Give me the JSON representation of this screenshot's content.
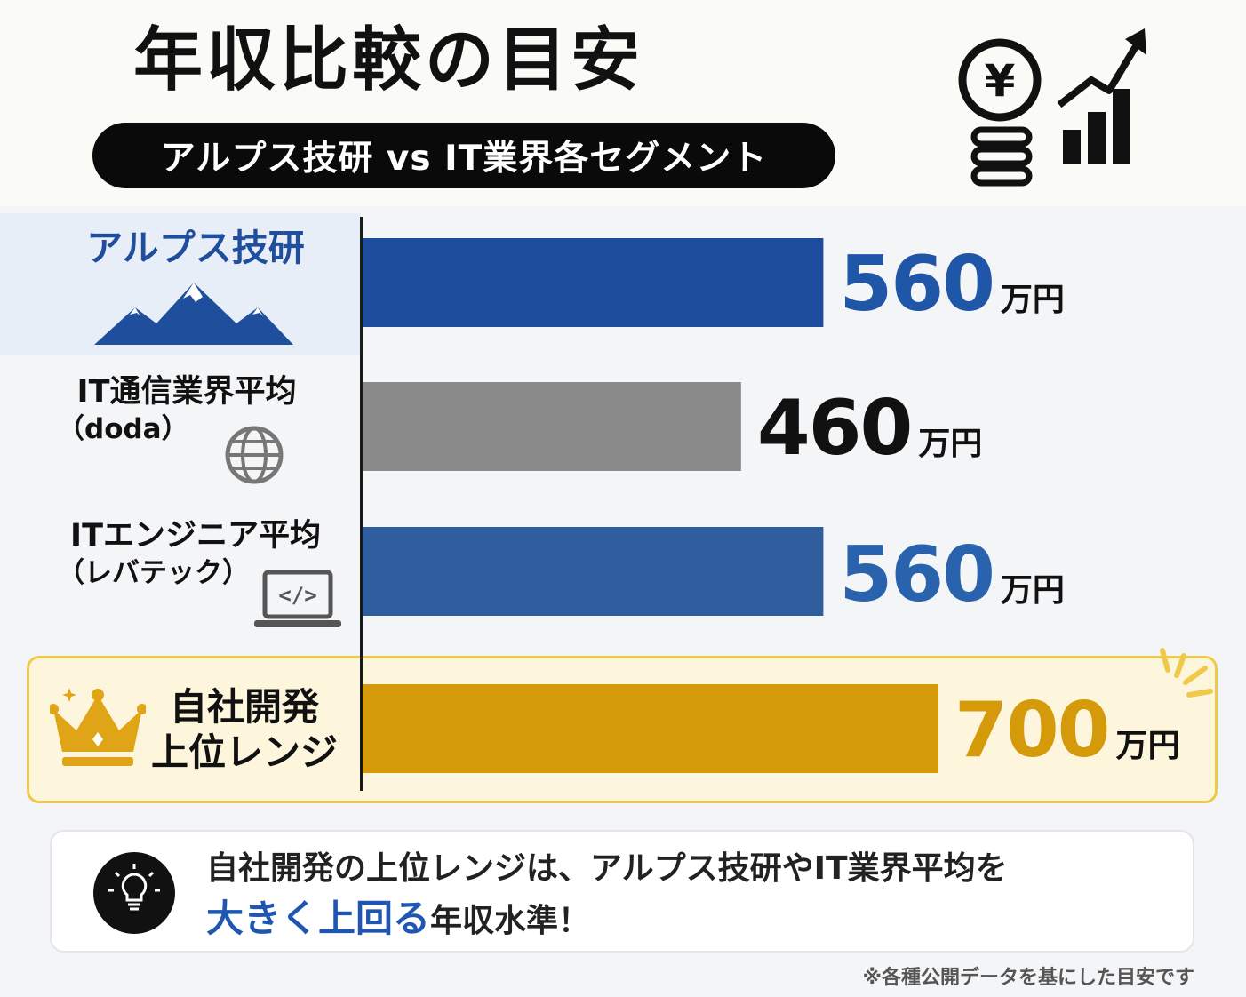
{
  "header": {
    "title": "年収比較の目安",
    "subtitle": "アルプス技研 vs IT業界各セグメント"
  },
  "chart_data": {
    "type": "bar",
    "orientation": "horizontal",
    "title": "年収比較の目安",
    "subtitle": "アルプス技研 vs IT業界各セグメント",
    "categories": [
      "アルプス技研",
      "IT通信業界平均（doda）",
      "ITエンジニア平均（レバテック）",
      "自社開発 上位レンジ"
    ],
    "values": [
      560,
      460,
      560,
      700
    ],
    "unit": "万円",
    "xlim": [
      0,
      700
    ],
    "grid": false,
    "legend": "none",
    "bar_colors": [
      "#1e4c9c",
      "#8a8a8a",
      "#2f5e9f",
      "#d49a09"
    ],
    "value_label_colors": [
      "#1f56a8",
      "#111111",
      "#2a63ad",
      "#d49a09"
    ]
  },
  "rows": [
    {
      "label": "アルプス技研",
      "sub": "",
      "value_text": "560",
      "unit": "万円",
      "icon": "mountain-icon"
    },
    {
      "label": "IT通信業界平均",
      "sub": "（doda）",
      "value_text": "460",
      "unit": "万円",
      "icon": "globe-icon"
    },
    {
      "label": "ITエンジニア平均",
      "sub": "（レバテック）",
      "value_text": "560",
      "unit": "万円",
      "icon": "laptop-code-icon"
    },
    {
      "label": "自社開発",
      "sub": "上位レンジ",
      "value_text": "700",
      "unit": "万円",
      "icon": "crown-icon"
    }
  ],
  "callout": {
    "line1": "自社開発の上位レンジは、アルプス技研やIT業界平均を",
    "emphasis": "大きく上回る",
    "line2_rest": "年収水準！",
    "icon": "lightbulb-icon"
  },
  "footnote": "※各種公開データを基にした目安です",
  "hero_icons": [
    "yen-coin-stack-icon",
    "growth-chart-icon"
  ],
  "colors": {
    "accent_blue": "#1f4e9c",
    "gold": "#d49a09",
    "highlight_bg": "#fdf6dc"
  }
}
